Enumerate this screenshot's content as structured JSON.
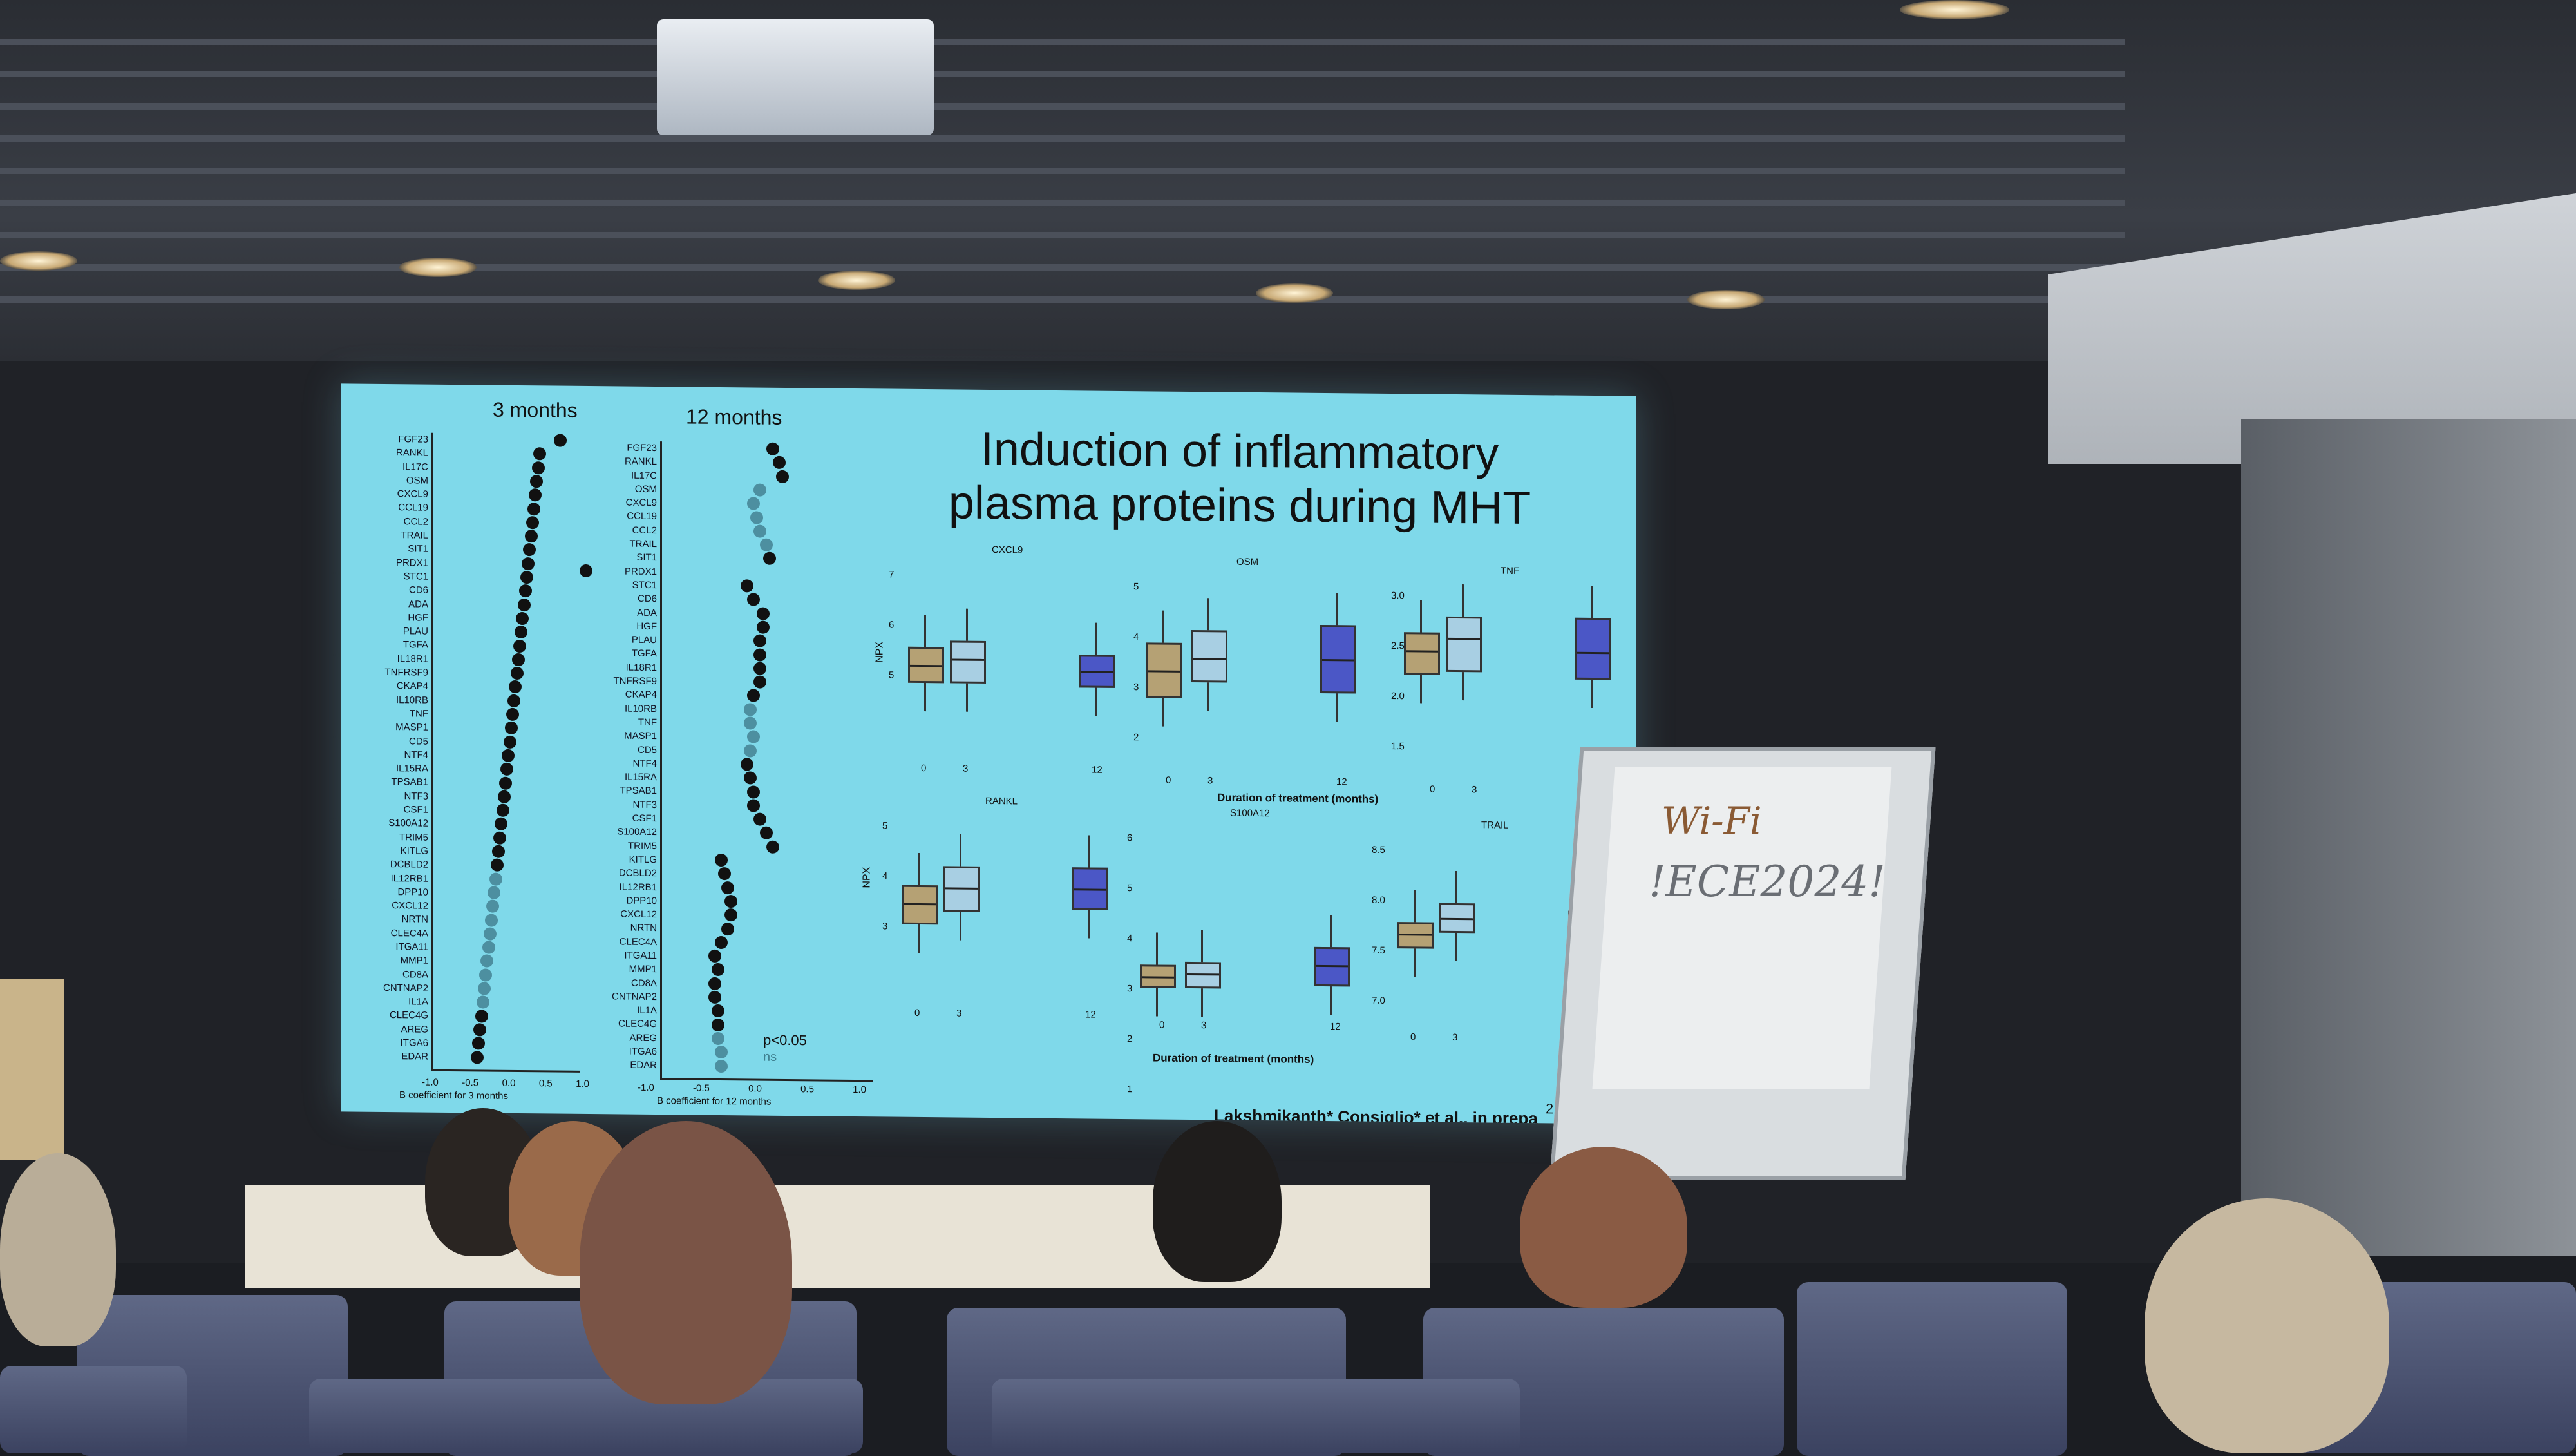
{
  "slide": {
    "title": "Induction of inflammatory plasma proteins during MHT",
    "left_panel": {
      "heading": "3 months",
      "x_axis_label": "B coefficient for 3 months",
      "ticks": [
        "-1.0",
        "-0.5",
        "0.0",
        "0.5",
        "1.0"
      ]
    },
    "middle_panel": {
      "heading": "12 months",
      "x_axis_label": "B coefficient for 12 months",
      "ticks": [
        "-1.0",
        "-0.5",
        "0.0",
        "0.5",
        "1.0"
      ]
    },
    "legend": {
      "significant": "p<0.05",
      "not_significant": "ns"
    },
    "genes": [
      "FGF23",
      "RANKL",
      "IL17C",
      "OSM",
      "CXCL9",
      "CCL19",
      "CCL2",
      "TRAIL",
      "SIT1",
      "PRDX1",
      "STC1",
      "CD6",
      "ADA",
      "HGF",
      "PLAU",
      "TGFA",
      "IL18R1",
      "TNFRSF9",
      "CKAP4",
      "IL10RB",
      "TNF",
      "MASP1",
      "CD5",
      "NTF4",
      "IL15RA",
      "TPSAB1",
      "NTF3",
      "CSF1",
      "S100A12",
      "TRIM5",
      "KITLG",
      "DCBLD2",
      "IL12RB1",
      "DPP10",
      "CXCL12",
      "NRTN",
      "CLEC4A",
      "ITGA11",
      "MMP1",
      "CD8A",
      "CNTNAP2",
      "IL1A",
      "CLEC4G",
      "AREG",
      "ITGA6",
      "EDAR"
    ],
    "boxplot_panels": [
      {
        "name": "CXCL9",
        "y_ticks": [
          "7",
          "6",
          "5"
        ]
      },
      {
        "name": "OSM",
        "y_ticks": [
          "5",
          "4",
          "3",
          "2"
        ]
      },
      {
        "name": "TNF",
        "y_ticks": [
          "3.0",
          "2.5",
          "2.0",
          "1.5"
        ]
      },
      {
        "name": "RANKL",
        "y_ticks": [
          "5",
          "4",
          "3"
        ]
      },
      {
        "name": "S100A12",
        "y_ticks": [
          "6",
          "5",
          "4",
          "3",
          "2",
          "1"
        ]
      },
      {
        "name": "TRAIL",
        "y_ticks": [
          "8.5",
          "8.0",
          "7.5",
          "7.0"
        ]
      }
    ],
    "y_axis_label": "NPX",
    "x_ticks": [
      "0",
      "3",
      "12"
    ],
    "x_axis_caption": "Duration of treatment (months)",
    "citation": "Lakshmikanth* Consiglio* et al., in prepa",
    "page_number": "21"
  },
  "flipchart": {
    "line1": "Wi-Fi",
    "line2": "!ECE2024!"
  },
  "colors": {
    "screen": "#7fd9ea",
    "tan": "#b5a174",
    "lightblue": "#a8cfe3",
    "blue": "#4b57c6",
    "sig_dot": "#111111",
    "ns_dot": "#4d8fa0"
  }
}
